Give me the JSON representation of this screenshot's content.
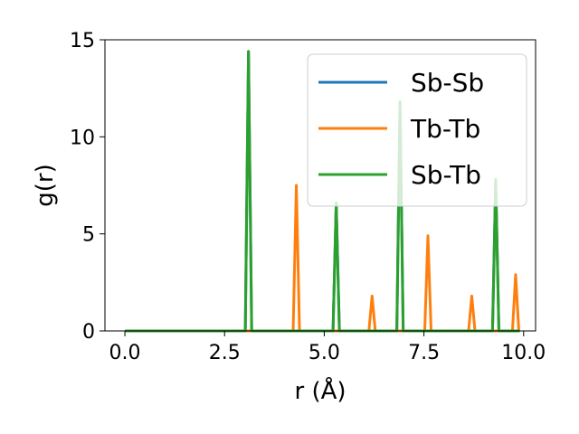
{
  "chart_data": {
    "type": "line",
    "title": "",
    "xlabel": "r (Å)",
    "ylabel": "g(r)",
    "xlim": [
      -0.5,
      10.3
    ],
    "ylim": [
      0,
      15
    ],
    "xticks": [
      0.0,
      2.5,
      5.0,
      7.5,
      10.0
    ],
    "xtick_labels": [
      "0.0",
      "2.5",
      "5.0",
      "7.5",
      "10.0"
    ],
    "yticks": [
      0,
      5,
      10,
      15
    ],
    "ytick_labels": [
      "0",
      "5",
      "10",
      "15"
    ],
    "grid": false,
    "legend_position": "top-right",
    "x_range": [
      0.0,
      9.9
    ],
    "series": [
      {
        "name": "Sb-Sb",
        "color": "#1f77b4",
        "peaks": [
          {
            "x": 3.1,
            "y": 14.4
          },
          {
            "x": 5.3,
            "y": 6.6
          },
          {
            "x": 6.9,
            "y": 11.8
          },
          {
            "x": 9.3,
            "y": 7.8
          }
        ]
      },
      {
        "name": "Tb-Tb",
        "color": "#ff7f0e",
        "peaks": [
          {
            "x": 4.3,
            "y": 7.5
          },
          {
            "x": 6.2,
            "y": 1.8
          },
          {
            "x": 7.6,
            "y": 4.9
          },
          {
            "x": 8.7,
            "y": 1.8
          },
          {
            "x": 9.8,
            "y": 2.9
          }
        ]
      },
      {
        "name": "Sb-Tb",
        "color": "#2ca02c",
        "peaks": [
          {
            "x": 3.1,
            "y": 14.4
          },
          {
            "x": 5.3,
            "y": 6.6
          },
          {
            "x": 6.9,
            "y": 11.8
          },
          {
            "x": 9.3,
            "y": 7.8
          }
        ]
      }
    ]
  }
}
